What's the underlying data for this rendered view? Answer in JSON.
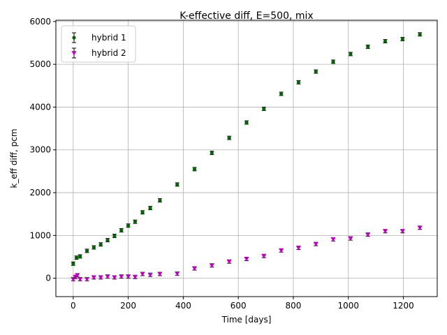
{
  "chart_data": {
    "type": "scatter",
    "title": "K-effective diff, E=500, mix",
    "xlabel": "Time [days]",
    "ylabel": "k_eff diff, pcm",
    "xlim": [
      -63,
      1323
    ],
    "ylim": [
      -430,
      6030
    ],
    "x_ticks": [
      0,
      200,
      400,
      600,
      800,
      1000,
      1200
    ],
    "y_ticks": [
      0,
      1000,
      2000,
      3000,
      4000,
      5000,
      6000
    ],
    "grid": true,
    "legend": "top-left",
    "error_bars": true,
    "series": [
      {
        "name": "hybrid 1",
        "color": "#006400",
        "marker": "circle",
        "x": [
          0,
          12,
          25,
          50,
          75,
          100,
          125,
          150,
          175,
          200,
          225,
          252,
          280,
          315,
          378,
          441,
          504,
          567,
          630,
          693,
          756,
          819,
          882,
          945,
          1008,
          1071,
          1134,
          1197,
          1260
        ],
        "y": [
          340,
          480,
          510,
          640,
          720,
          790,
          890,
          990,
          1120,
          1230,
          1320,
          1540,
          1640,
          1820,
          2190,
          2550,
          2930,
          3280,
          3640,
          3960,
          4310,
          4580,
          4830,
          5060,
          5240,
          5410,
          5540,
          5590,
          5700
        ],
        "err": 40
      },
      {
        "name": "hybrid 2",
        "color": "#c000c0",
        "marker": "triangle-down",
        "x": [
          0,
          8,
          15,
          25,
          50,
          75,
          100,
          125,
          150,
          175,
          200,
          225,
          252,
          280,
          315,
          378,
          441,
          504,
          567,
          630,
          693,
          756,
          819,
          882,
          945,
          1008,
          1071,
          1134,
          1197,
          1260
        ],
        "y": [
          -20,
          30,
          70,
          -20,
          -20,
          20,
          20,
          40,
          20,
          40,
          40,
          30,
          100,
          80,
          100,
          110,
          230,
          300,
          390,
          450,
          520,
          650,
          710,
          800,
          910,
          930,
          1020,
          1100,
          1100,
          1180
        ],
        "err": 40
      }
    ]
  }
}
